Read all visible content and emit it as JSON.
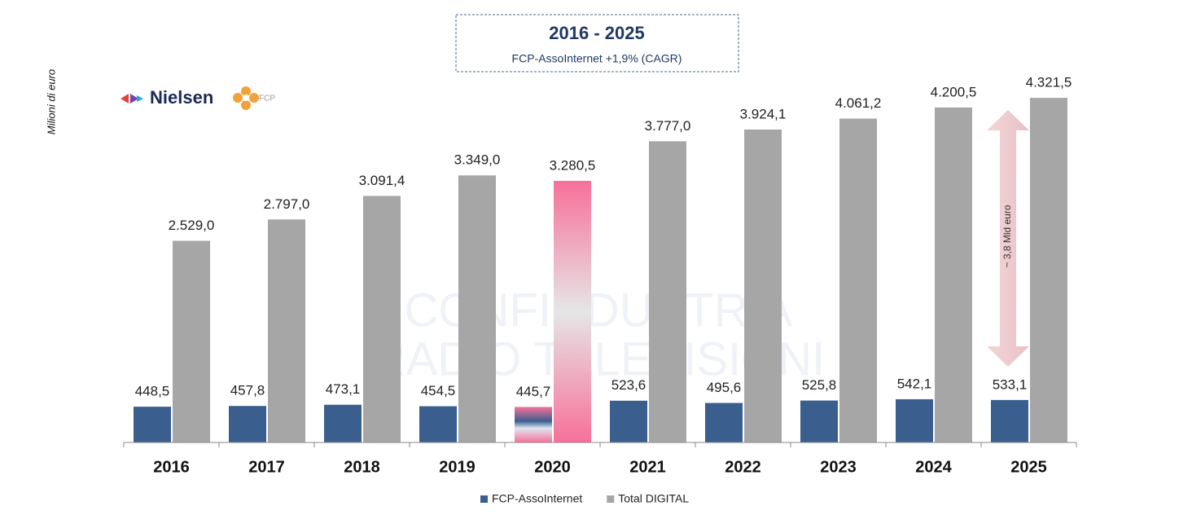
{
  "chart_data": {
    "type": "bar",
    "title": "2016 - 2025",
    "subtitle": "FCP-AssoInternet +1,9% (CAGR)",
    "y_label": "Milioni di euro",
    "annotation": "~ 3,8 Mld euro",
    "logos": [
      "Nielsen",
      "FCP"
    ],
    "watermark": [
      "CONFINDUSTRIA",
      "RADIO TELEVISIONI"
    ],
    "categories": [
      "2016",
      "2017",
      "2018",
      "2019",
      "2020",
      "2021",
      "2022",
      "2023",
      "2024",
      "2025"
    ],
    "series": [
      {
        "name": "FCP-AssoInternet",
        "color": "#3a5f8f",
        "values": [
          448.5,
          457.8,
          473.1,
          454.5,
          445.7,
          523.6,
          495.6,
          525.8,
          542.1,
          533.1
        ],
        "value_labels": [
          "448,5",
          "457,8",
          "473,1",
          "454,5",
          "445,7",
          "523,6",
          "495,6",
          "525,8",
          "542,1",
          "533,1"
        ]
      },
      {
        "name": "Total DIGITAL",
        "color": "#a6a6a6",
        "values": [
          2529.0,
          2797.0,
          3091.4,
          3349.0,
          3280.5,
          3777.0,
          3924.1,
          4061.2,
          4200.5,
          4321.5
        ],
        "value_labels": [
          "2.529,0",
          "2.797,0",
          "3.091,4",
          "3.349,0",
          "3.280,5",
          "3.777,0",
          "3.924,1",
          "4.061,2",
          "4.200,5",
          "4.321,5"
        ]
      }
    ],
    "highlight_index": 4,
    "highlight_color": "#f7709a",
    "ylim": [
      0,
      4500
    ],
    "legend": "bottom"
  }
}
